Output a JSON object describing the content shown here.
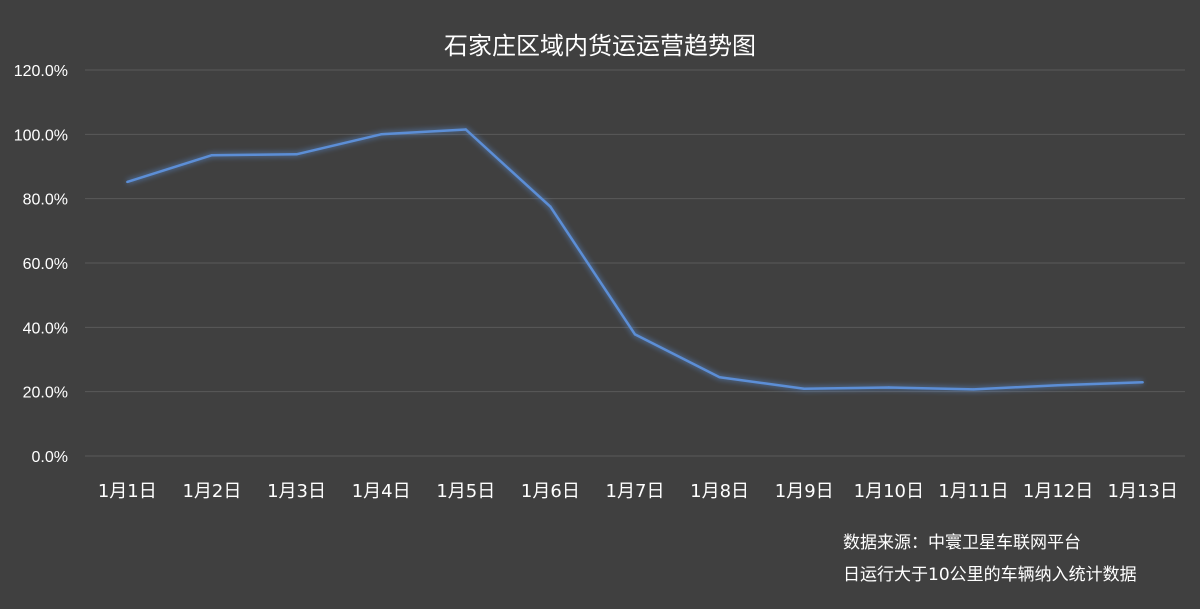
{
  "chart_data": {
    "type": "line",
    "title": "石家庄区域内货运运营趋势图",
    "categories": [
      "1月1日",
      "1月2日",
      "1月3日",
      "1月4日",
      "1月5日",
      "1月6日",
      "1月7日",
      "1月8日",
      "1月9日",
      "1月10日",
      "1月11日",
      "1月12日",
      "1月13日"
    ],
    "series": [
      {
        "values": [
          85.2,
          93.5,
          93.8,
          100.0,
          101.5,
          77.5,
          37.8,
          24.5,
          20.9,
          21.3,
          20.7,
          22.0,
          22.9
        ],
        "color": "#5b8ed6"
      }
    ],
    "yticks": [
      "0.0%",
      "20.0%",
      "40.0%",
      "60.0%",
      "80.0%",
      "100.0%",
      "120.0%"
    ],
    "ylim": [
      0,
      120
    ],
    "grid": true,
    "legend": "none"
  },
  "footer": {
    "source_line1": "数据来源：中寰卫星车联网平台",
    "source_line2": "日运行大于10公里的车辆纳入统计数据"
  },
  "colors": {
    "background": "#404040",
    "grid": "#5a5a5a",
    "line": "#5b8ed6",
    "text": "#ffffff"
  }
}
